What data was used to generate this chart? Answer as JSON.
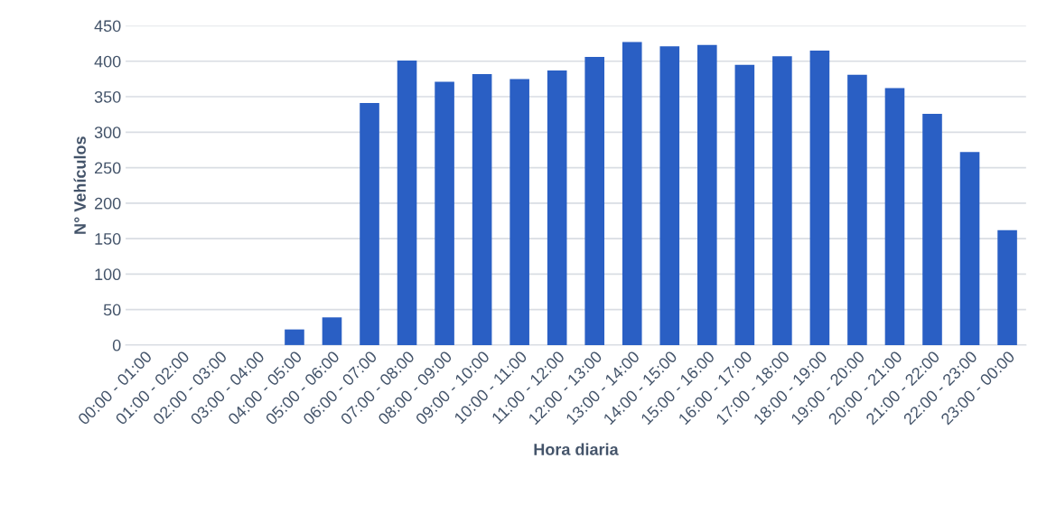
{
  "chart_data": {
    "type": "bar",
    "xlabel": "Hora diaria",
    "ylabel": "N° Vehículos",
    "categories": [
      "00:00 - 01:00",
      "01:00 - 02:00",
      "02:00 - 03:00",
      "03:00 - 04:00",
      "04:00 - 05:00",
      "05:00 - 06:00",
      "06:00 - 07:00",
      "07:00 - 08:00",
      "08:00 - 09:00",
      "09:00 - 10:00",
      "10:00 - 11:00",
      "11:00 - 12:00",
      "12:00 - 13:00",
      "13:00 - 14:00",
      "14:00 - 15:00",
      "15:00 - 16:00",
      "16:00 - 17:00",
      "17:00 - 18:00",
      "18:00 - 19:00",
      "19:00 - 20:00",
      "20:00 - 21:00",
      "21:00 - 22:00",
      "22:00 - 23:00",
      "23:00 - 00:00"
    ],
    "values": [
      0,
      0,
      0,
      0,
      22,
      39,
      341,
      401,
      371,
      382,
      375,
      387,
      406,
      427,
      421,
      423,
      395,
      407,
      415,
      381,
      362,
      326,
      272,
      162
    ],
    "color": "#2a5fc4",
    "ylim": [
      0,
      450
    ],
    "yticks": [
      0,
      50,
      100,
      150,
      200,
      250,
      300,
      350,
      400,
      450
    ],
    "grid": "y"
  }
}
